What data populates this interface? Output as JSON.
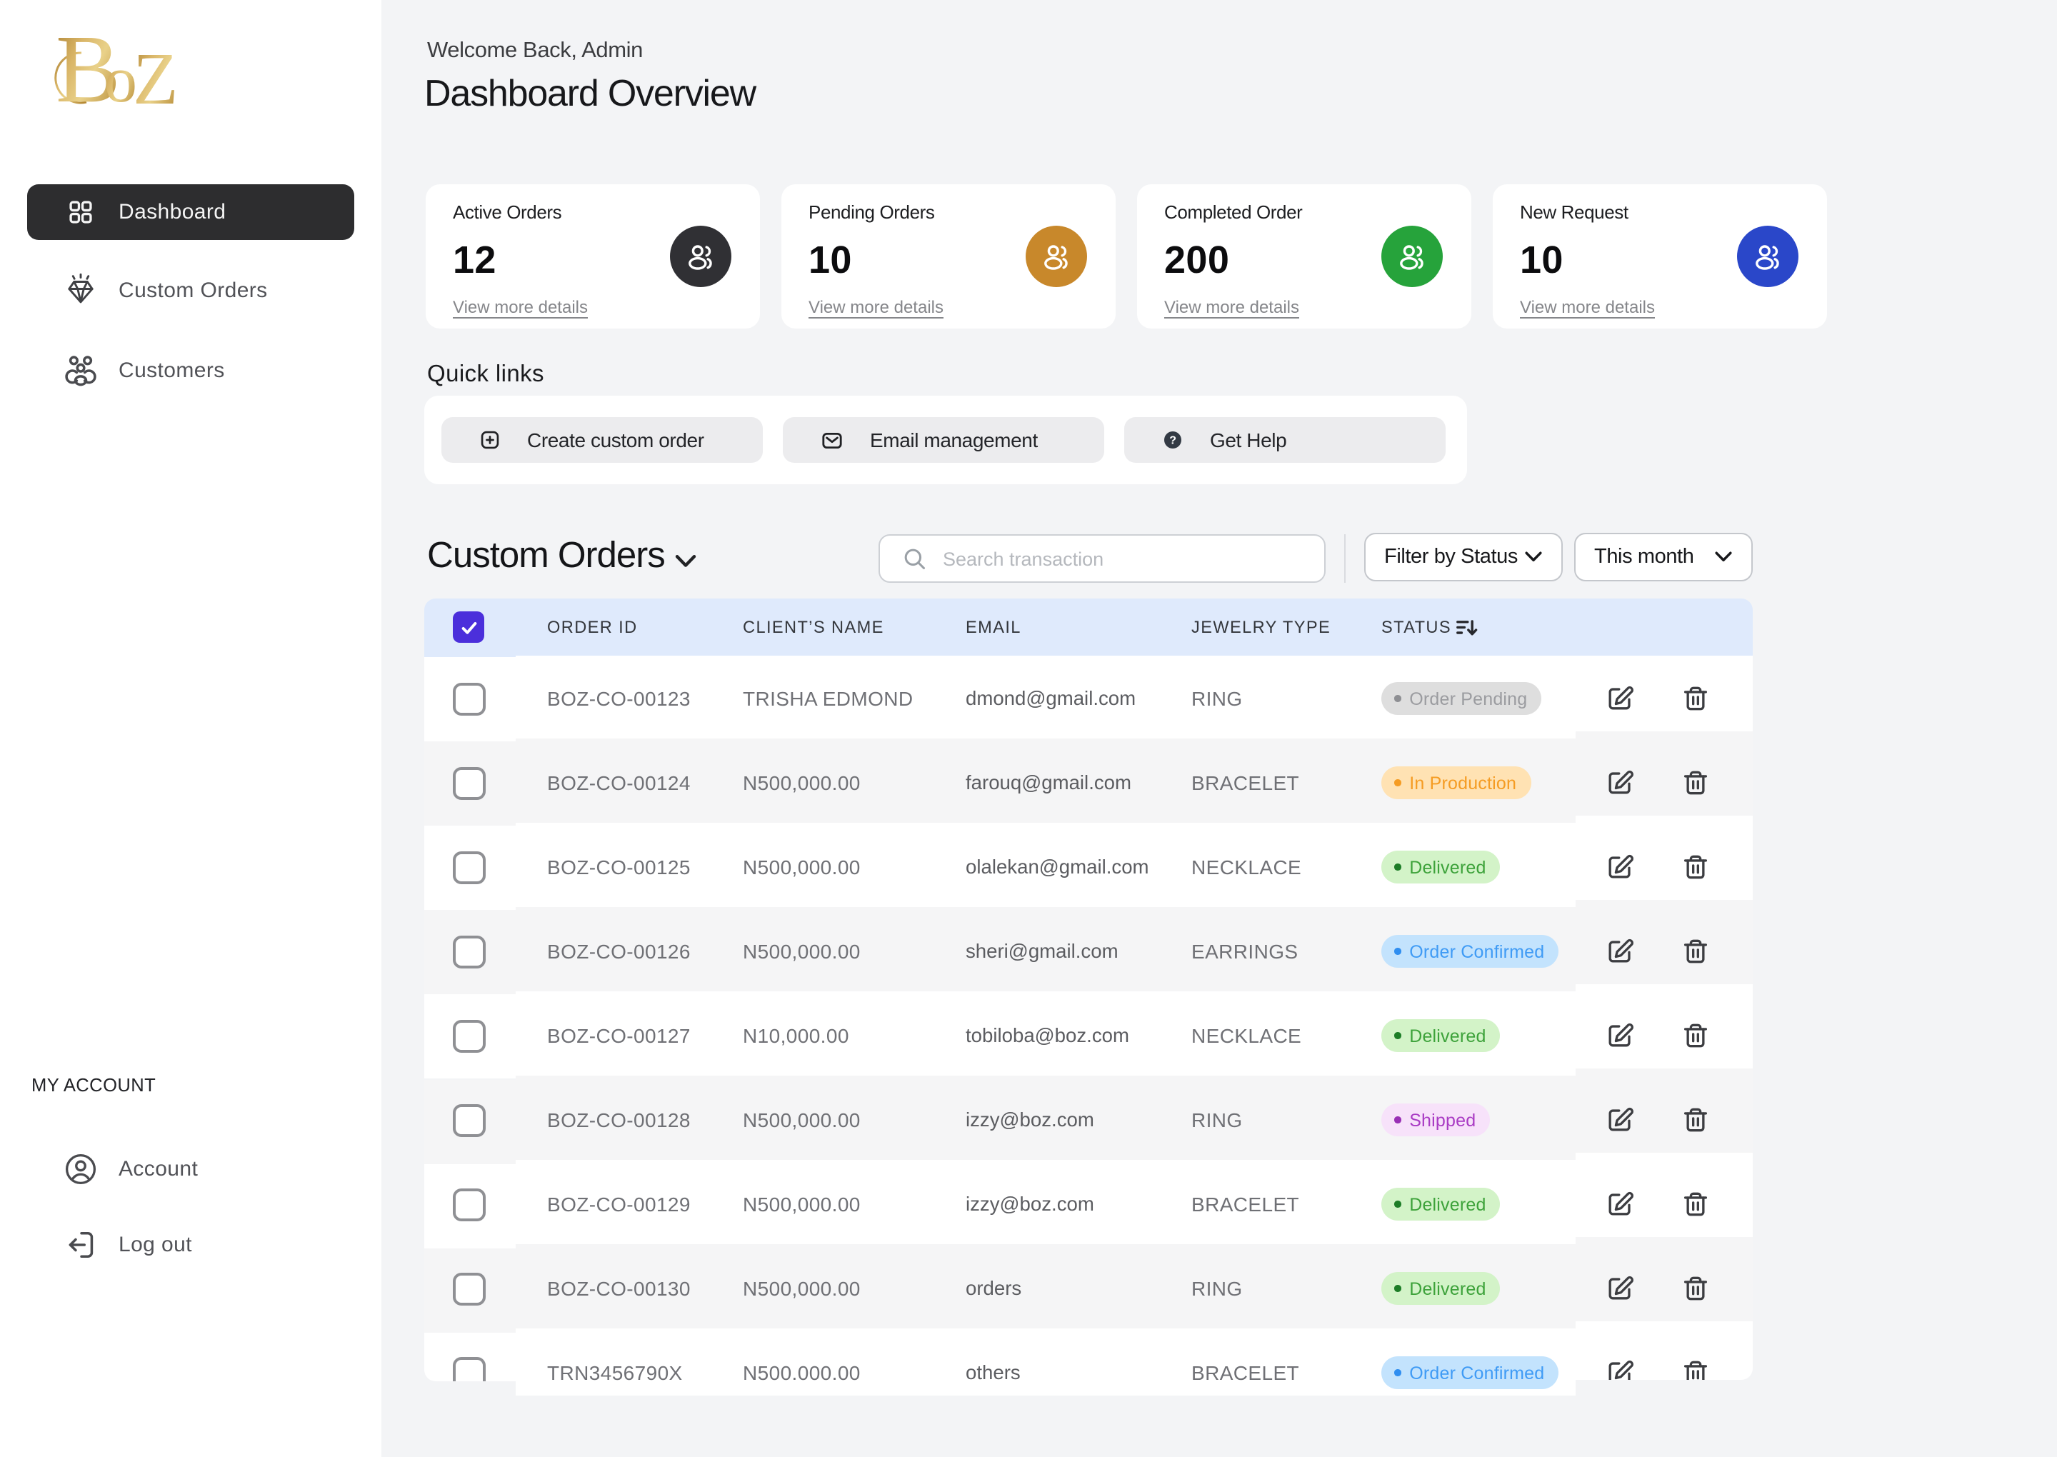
{
  "brand": {
    "logo_text": "Boz",
    "logo_gold_dark": "#a97e2f",
    "logo_gold_light": "#e9d189"
  },
  "sidebar": {
    "items": [
      {
        "label": "Dashboard",
        "icon": "dashboard-grid-icon",
        "active": true
      },
      {
        "label": "Custom Orders",
        "icon": "diamond-icon",
        "active": false
      },
      {
        "label": "Customers",
        "icon": "customers-icon",
        "active": false
      }
    ],
    "account_section_label": "MY ACCOUNT",
    "account_items": [
      {
        "label": "Account",
        "icon": "user-circle-icon"
      },
      {
        "label": "Log out",
        "icon": "logout-icon"
      }
    ]
  },
  "header": {
    "welcome": "Welcome Back, Admin",
    "title": "Dashboard Overview"
  },
  "stats": [
    {
      "label": "Active Orders",
      "value": "12",
      "link": "View more details",
      "circle_color": "#303034"
    },
    {
      "label": "Pending Orders",
      "value": "10",
      "link": "View more details",
      "circle_color": "#c8882b"
    },
    {
      "label": "Completed Order",
      "value": "200",
      "link": "View more details",
      "circle_color": "#26a33b"
    },
    {
      "label": "New Request",
      "value": "10",
      "link": "View more details",
      "circle_color": "#2a47c9"
    }
  ],
  "quick_links": {
    "label": "Quick links",
    "buttons": [
      {
        "label": "Create custom order",
        "icon": "plus-square-icon"
      },
      {
        "label": "Email management",
        "icon": "mail-icon"
      },
      {
        "label": "Get Help",
        "icon": "help-circle-icon"
      }
    ]
  },
  "orders": {
    "title": "Custom Orders",
    "search_placeholder": "Search transaction",
    "filter_status_label": "Filter by Status",
    "period_label": "This month",
    "columns": [
      "ORDER ID",
      "CLIENT’S NAME",
      "EMAIL",
      "JEWELRY TYPE",
      "STATUS"
    ],
    "header_checkbox_checked": true,
    "rows": [
      {
        "id": "BOZ-CO-00123",
        "client": "TRISHA EDMOND",
        "email": "dmond@gmail.com",
        "type": "RING",
        "status": "Order Pending"
      },
      {
        "id": "BOZ-CO-00124",
        "client": "N500,000.00",
        "email": "farouq@gmail.com",
        "type": "BRACELET",
        "status": "In Production"
      },
      {
        "id": "BOZ-CO-00125",
        "client": "N500,000.00",
        "email": "olalekan@gmail.com",
        "type": "NECKLACE",
        "status": "Delivered"
      },
      {
        "id": "BOZ-CO-00126",
        "client": "N500,000.00",
        "email": "sheri@gmail.com",
        "type": "EARRINGS",
        "status": "Order Confirmed"
      },
      {
        "id": "BOZ-CO-00127",
        "client": "N10,000.00",
        "email": "tobiloba@boz.com",
        "type": "NECKLACE",
        "status": "Delivered"
      },
      {
        "id": "BOZ-CO-00128",
        "client": "N500,000.00",
        "email": "izzy@boz.com",
        "type": "RING",
        "status": "Shipped"
      },
      {
        "id": "BOZ-CO-00129",
        "client": "N500,000.00",
        "email": "izzy@boz.com",
        "type": "BRACELET",
        "status": "Delivered"
      },
      {
        "id": "BOZ-CO-00130",
        "client": "N500,000.00",
        "email": "orders",
        "type": "RING",
        "status": "Delivered"
      },
      {
        "id": "TRN3456790X",
        "client": "N500.000.00",
        "email": "others",
        "type": "BRACELET",
        "status": "Order Confirmed"
      }
    ],
    "status_styles": {
      "Order Pending": {
        "bg": "#dedede",
        "fg": "#9b9ca0",
        "dot": "#8e8f93"
      },
      "In Production": {
        "bg": "#ffe2b3",
        "fg": "#f59c23",
        "dot": "#f59c23"
      },
      "Delivered": {
        "bg": "#d3f3c8",
        "fg": "#3da23a",
        "dot": "#1d7d27"
      },
      "Order Confirmed": {
        "bg": "#c3e3fd",
        "fg": "#3f9bf5",
        "dot": "#2f8ef0"
      },
      "Shipped": {
        "bg": "#f7e2fa",
        "fg": "#a93bc4",
        "dot": "#992fb5"
      }
    },
    "table_colors": {
      "header_bg": "#dfeafc",
      "stripe_gray": "#f5f5f6",
      "stripe_white": "#ffffff"
    }
  }
}
